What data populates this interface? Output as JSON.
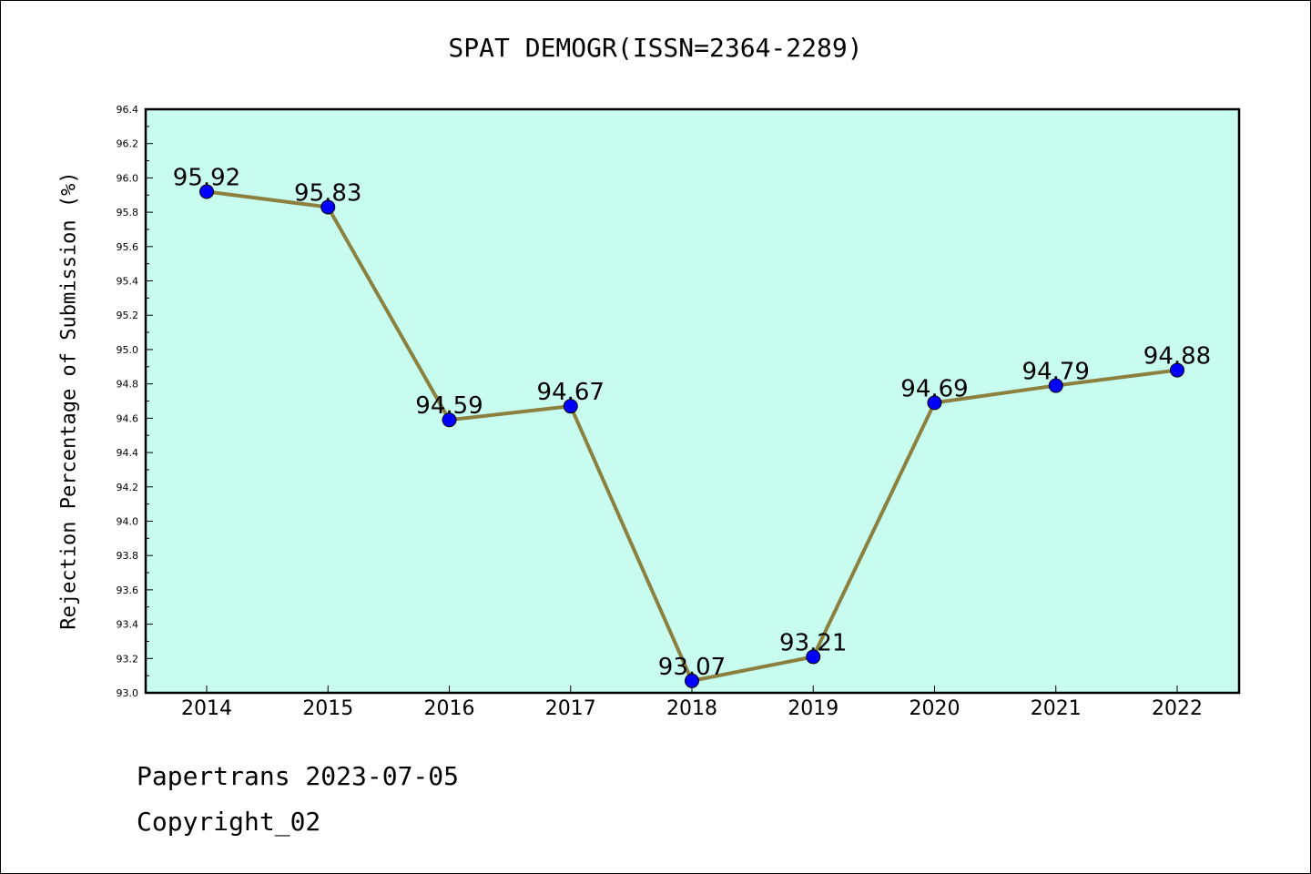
{
  "title": "SPAT DEMOGR(ISSN=2364-2289)",
  "footer": {
    "line1": "Papertrans 2023-07-05",
    "line2": "Copyright_02"
  },
  "colors": {
    "plot_background": "#c8fcee",
    "line": "#8b8040",
    "marker": "#0000ff"
  },
  "chart_data": {
    "type": "line",
    "title": "SPAT DEMOGR(ISSN=2364-2289)",
    "xlabel": "",
    "ylabel": "Rejection Percentage of Submission (%)",
    "categories": [
      "2014",
      "2015",
      "2016",
      "2017",
      "2018",
      "2019",
      "2020",
      "2021",
      "2022"
    ],
    "series": [
      {
        "values": [
          95.92,
          95.83,
          94.59,
          94.67,
          93.07,
          93.21,
          94.69,
          94.79,
          94.88
        ],
        "labels": [
          "95.92",
          "95.83",
          "94.59",
          "94.67",
          "93.07",
          "93.21",
          "94.69",
          "94.79",
          "94.88"
        ]
      }
    ],
    "ylim": [
      93.0,
      96.4
    ],
    "yticks": [
      "93.0",
      "93.2",
      "93.4",
      "93.6",
      "93.8",
      "94.0",
      "94.2",
      "94.4",
      "94.6",
      "94.8",
      "95.0",
      "95.2",
      "95.4",
      "95.6",
      "95.8",
      "96.0",
      "96.2",
      "96.4"
    ],
    "grid": false,
    "legend": "none"
  }
}
